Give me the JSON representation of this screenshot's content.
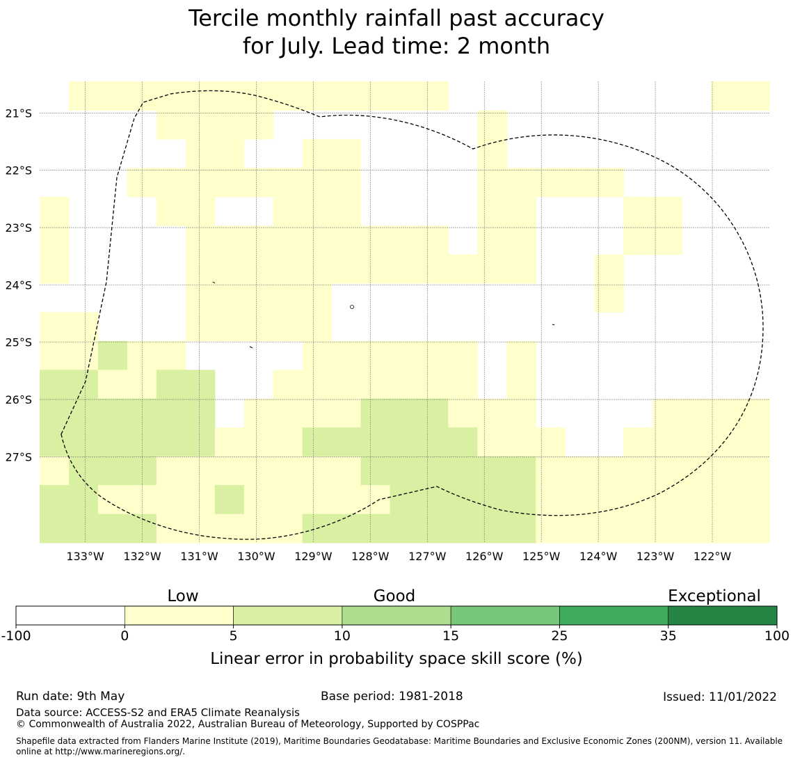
{
  "title_line1": "Tercile monthly rainfall past accuracy",
  "title_line2": "for July. Lead time: 2 month",
  "map": {
    "lon_labels": [
      "133°W",
      "132°W",
      "131°W",
      "130°W",
      "129°W",
      "128°W",
      "127°W",
      "126°W",
      "125°W",
      "124°W",
      "123°W",
      "122°W"
    ],
    "lat_labels": [
      "21°S",
      "22°S",
      "23°S",
      "24°S",
      "25°S",
      "26°S",
      "27°S"
    ],
    "lon_values": [
      -133,
      -132,
      -131,
      -130,
      -129,
      -128,
      -127,
      -126,
      -125,
      -124,
      -123,
      -122
    ],
    "lat_values": [
      -21,
      -22,
      -23,
      -24,
      -25,
      -26,
      -27
    ],
    "lon_range": [
      -133.8,
      -121.0
    ],
    "lat_range": [
      -28.5,
      -20.45
    ],
    "grid": true,
    "boundary": "EEZ dashed outline",
    "cell_category_levels": "0 = below 0, 1 = 0-5, 2 = 5-10",
    "cell_grid": [
      "0111111111111100000000011",
      "0000111100000001000000000",
      "0000011001100001000000000",
      "0001111111100001111100000",
      "1000110011100001100011000",
      "1000011111111101100011000",
      "1000011111111111100100000",
      "0000011111000000000100000",
      "1100011111000000000000000",
      "1121100001111110100000000",
      "2211220011111110100000000",
      "2222220111122211100001111",
      "2222221112222221110011111",
      "1222111111122222211111111",
      "2211112111112222211111111",
      "2222111112222222211111111"
    ]
  },
  "colorbar": {
    "colors": [
      "#ffffff",
      "#ffffcc",
      "#d9f0a3",
      "#addd8e",
      "#78c679",
      "#41ab5d",
      "#238443"
    ],
    "tick_labels": [
      "-100",
      "0",
      "5",
      "10",
      "15",
      "25",
      "35",
      "100"
    ],
    "category_labels": [
      "Low",
      "Good",
      "Exceptional"
    ],
    "axis_label": "Linear error in probability space skill score (%)"
  },
  "footer": {
    "run_date": "Run date: 9th May",
    "base_period": "Base period: 1981-2018",
    "issued": "Issued: 11/01/2022",
    "data_source": "Data source: ACCESS-S2 and ERA5 Climate Reanalysis",
    "copyright": "© Commonwealth of Australia 2022, Australian Bureau of Meteorology, Supported by COSPPac",
    "shapefile": "Shapefile data extracted from Flanders Marine Institute (2019), Maritime Boundaries Geodatabase: Maritime Boundaries and Exclusive Economic Zones (200NM), version 11. Available online at http://www.marineregions.org/."
  }
}
